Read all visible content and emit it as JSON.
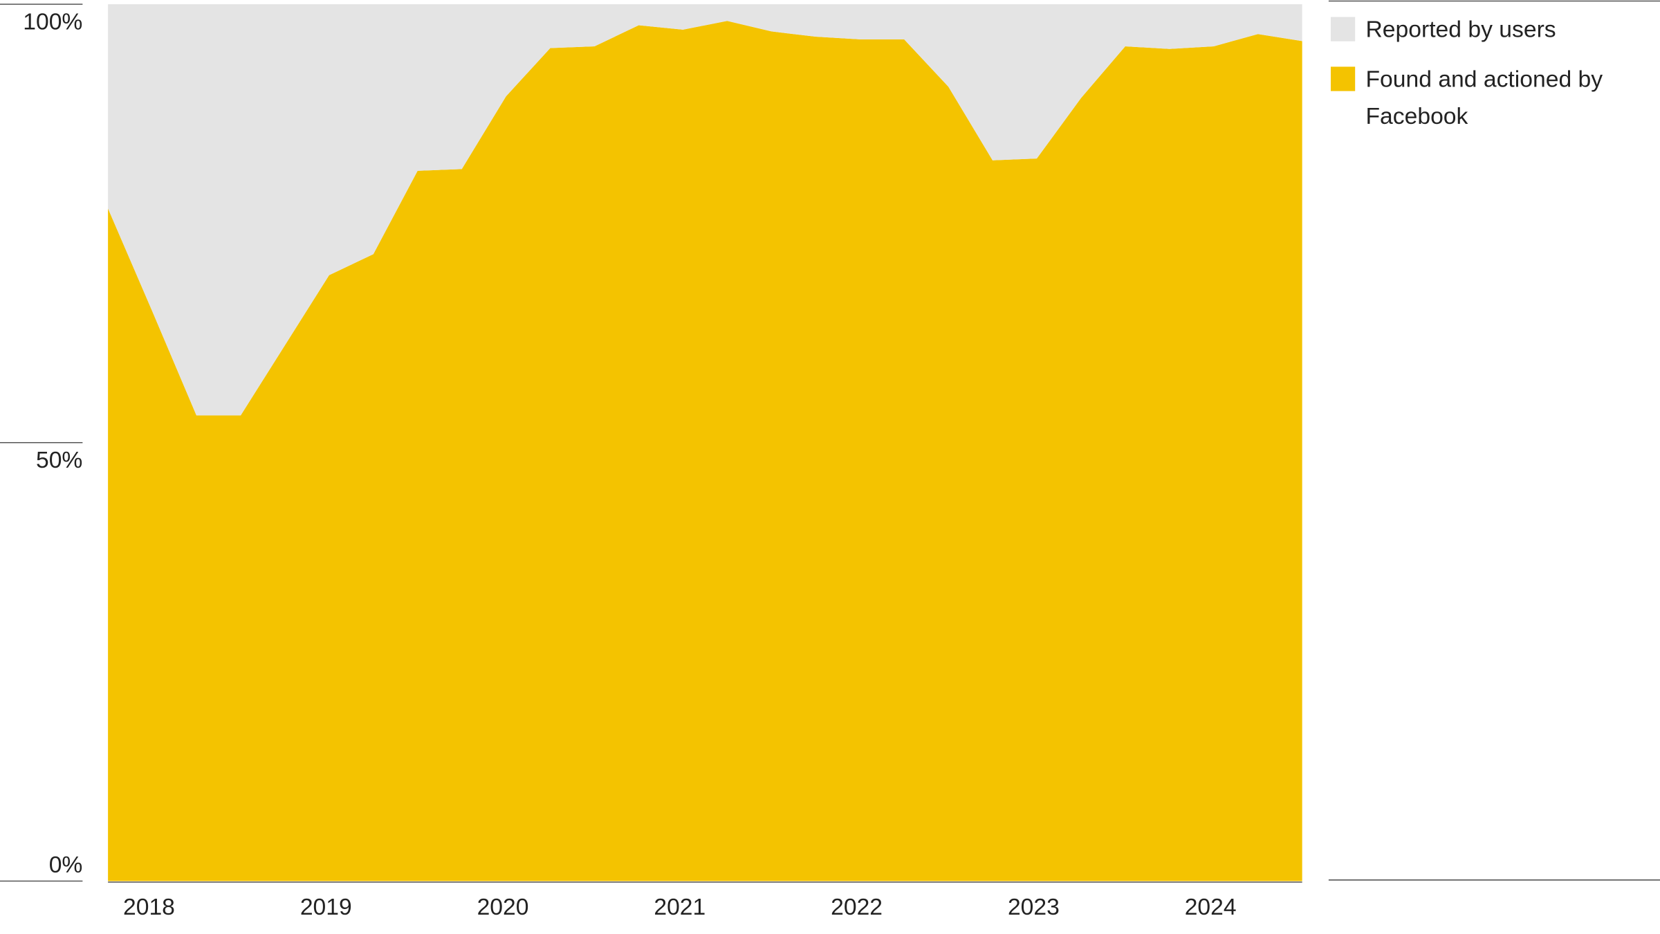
{
  "chart_data": {
    "type": "area",
    "stacked": true,
    "categories": [
      null,
      "2018",
      null,
      null,
      null,
      "2019",
      null,
      null,
      null,
      "2020",
      null,
      null,
      null,
      "2021",
      null,
      null,
      null,
      "2022",
      null,
      null,
      null,
      "2023",
      null,
      null,
      null,
      "2024",
      null,
      null
    ],
    "series": [
      {
        "name": "Found and actioned by Facebook",
        "color": "#f4c300",
        "values": [
          76.7,
          65,
          53.1,
          53.1,
          61.1,
          69.1,
          71.5,
          81.0,
          81.2,
          89.5,
          95.0,
          95.2,
          97.6,
          97.1,
          98.1,
          96.9,
          96.3,
          96.0,
          96.0,
          90.6,
          82.2,
          82.4,
          89.3,
          95.2,
          94.9,
          95.2,
          96.6,
          95.8
        ]
      },
      {
        "name": "Reported by users",
        "color": "#e4e4e4",
        "values": [
          23.3,
          35,
          46.9,
          46.9,
          38.9,
          30.9,
          28.5,
          19.0,
          18.8,
          10.5,
          5.0,
          4.8,
          2.4,
          2.9,
          1.9,
          3.1,
          3.7,
          4.0,
          4.0,
          9.4,
          17.8,
          17.6,
          10.7,
          4.8,
          5.1,
          4.8,
          3.4,
          4.2
        ]
      }
    ],
    "ylim": [
      0,
      100
    ],
    "yticks": [
      {
        "value": 0,
        "label": "0%"
      },
      {
        "value": 50,
        "label": "50%"
      },
      {
        "value": 100,
        "label": "100%"
      }
    ],
    "legend": "top-right"
  }
}
